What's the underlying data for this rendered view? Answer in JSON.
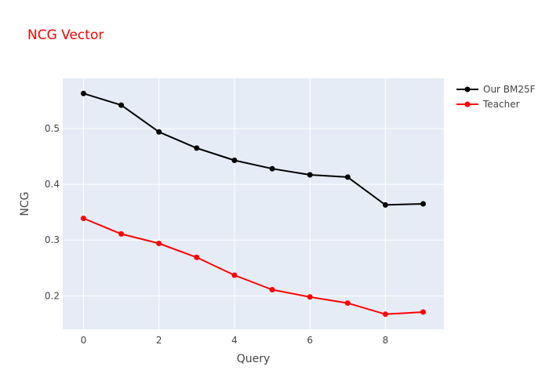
{
  "chart_data": {
    "type": "line",
    "title": "NCG Vector",
    "xlabel": "Query",
    "ylabel": "NCG",
    "x": [
      0,
      1,
      2,
      3,
      4,
      5,
      6,
      7,
      8,
      9
    ],
    "xlim": [
      -0.55,
      9.55
    ],
    "ylim": [
      0.14,
      0.59
    ],
    "xticks": [
      0,
      2,
      4,
      6,
      8
    ],
    "yticks": [
      0.2,
      0.3,
      0.4,
      0.5
    ],
    "xtick_labels": [
      "0",
      "2",
      "4",
      "6",
      "8"
    ],
    "ytick_labels": [
      "0.2",
      "0.3",
      "0.4",
      "0.5"
    ],
    "grid": true,
    "legend_position": "top-right, outside plot",
    "series": [
      {
        "name": "Our BM25F",
        "color": "#000000",
        "values": [
          0.563,
          0.542,
          0.494,
          0.465,
          0.443,
          0.428,
          0.417,
          0.413,
          0.363,
          0.365
        ]
      },
      {
        "name": "Teacher",
        "color": "#ff0000",
        "values": [
          0.339,
          0.311,
          0.294,
          0.269,
          0.237,
          0.211,
          0.198,
          0.187,
          0.167,
          0.171
        ]
      }
    ],
    "colors": {
      "title": "#ff0000",
      "plot_background": "#e5ecf6",
      "grid": "#ffffff",
      "text": "#444444"
    }
  }
}
